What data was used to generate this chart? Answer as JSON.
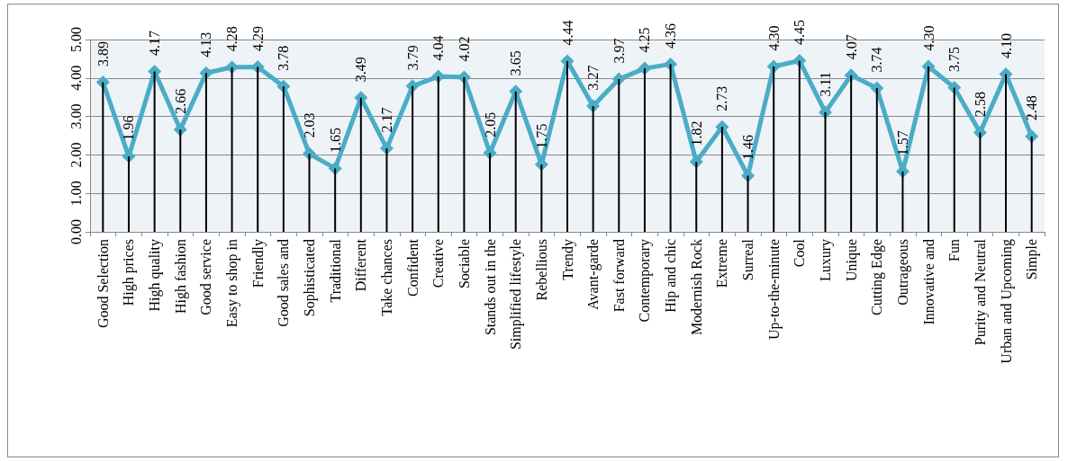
{
  "chart_data": {
    "type": "line",
    "categories": [
      "Good Selection",
      "High prices",
      "High quality",
      "High fashion",
      "Good service",
      "Easy to shop in",
      "Friendly",
      "Good sales and",
      "Sophisticated",
      "Traditional",
      "Different",
      "Take chances",
      "Confident",
      "Creative",
      "Sociable",
      "Stands out in the",
      "Simplified lifestyle",
      "Rebellious",
      "Trendy",
      "Avant-garde",
      "Fast forward",
      "Contemporary",
      "Hip and chic",
      "Modernish Rock",
      "Extreme",
      "Surreal",
      "Up-to-the-minute",
      "Cool",
      "Luxury",
      "Unique",
      "Cutting Edge",
      "Outrageous",
      "Innovative and",
      "Fun",
      "Purity and Neutral",
      "Urban and Upcoming",
      "Simple"
    ],
    "series": [
      {
        "color": "#4bacc6",
        "marker": "diamond",
        "values": [
          3.89,
          1.96,
          4.17,
          2.66,
          4.13,
          4.28,
          4.29,
          3.78,
          2.03,
          1.65,
          3.49,
          2.17,
          3.79,
          4.04,
          4.02,
          2.05,
          3.65,
          1.75,
          4.44,
          3.27,
          3.97,
          4.25,
          4.36,
          1.82,
          2.73,
          1.46,
          4.3,
          4.45,
          3.11,
          4.07,
          3.74,
          1.57,
          4.3,
          3.75,
          2.58,
          4.1,
          2.48
        ],
        "value_labels": [
          "3.89",
          "1.96",
          "4.17",
          "2.66",
          "4.13",
          "4.28",
          "4.29",
          "3.78",
          "2.03",
          "1.65",
          "3.49",
          "2.17",
          "3.79",
          "4.04",
          "4.02",
          "2.05",
          "3.65",
          "1.75",
          "4.44",
          "3.27",
          "3.97",
          "4.25",
          "4.36",
          "1.82",
          "2.73",
          "1.46",
          "4.30",
          "4.45",
          "3.11",
          "4.07",
          "3.74",
          "1.57",
          "4.30",
          "3.75",
          "2.58",
          "4.10",
          "2.48"
        ]
      },
      {
        "type": "bar",
        "color": "#000000",
        "values": [
          3.89,
          1.96,
          4.17,
          2.66,
          4.13,
          4.28,
          4.29,
          3.78,
          2.03,
          1.65,
          3.49,
          2.17,
          3.79,
          4.04,
          4.02,
          2.05,
          3.65,
          1.75,
          4.44,
          3.27,
          3.97,
          4.25,
          4.36,
          1.82,
          2.73,
          1.46,
          4.3,
          4.45,
          3.11,
          4.07,
          3.74,
          1.57,
          4.3,
          3.75,
          2.58,
          4.1,
          2.48
        ]
      }
    ],
    "ylim": [
      0,
      5
    ],
    "yticks": [
      {
        "value": 0,
        "label": "0.00"
      },
      {
        "value": 1,
        "label": "1.00"
      },
      {
        "value": 2,
        "label": "2.00"
      },
      {
        "value": 3,
        "label": "3.00"
      },
      {
        "value": 4,
        "label": "4.00"
      },
      {
        "value": 5,
        "label": "5.00"
      }
    ],
    "grid": "y",
    "line_style": "solid"
  }
}
